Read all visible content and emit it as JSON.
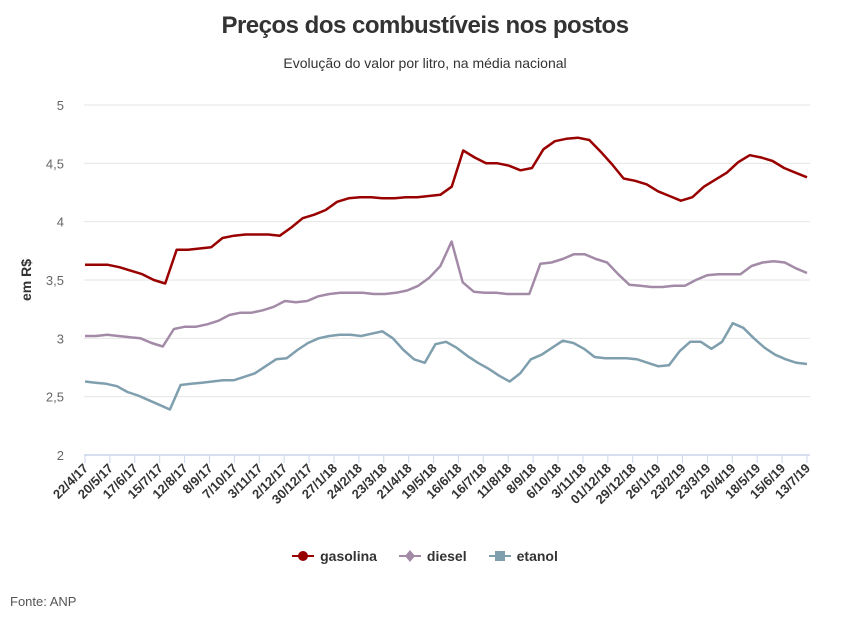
{
  "chart_data": {
    "type": "line",
    "title": "Preços dos combustíveis nos postos",
    "subtitle": "Evolução do valor por litro, na média nacional",
    "ylabel": "em R$",
    "xlabel": "",
    "ylim": [
      2,
      5
    ],
    "yticks": [
      "2",
      "2,5",
      "3",
      "3,5",
      "4",
      "4,5",
      "5"
    ],
    "ytick_values": [
      2,
      2.5,
      3,
      3.5,
      4,
      4.5,
      5
    ],
    "grid": true,
    "legend_position": "bottom",
    "x_tick_labels": [
      "22/4/17",
      "20/5/17",
      "17/6/17",
      "15/7/17",
      "12/8/17",
      "8/9/17",
      "7/10/17",
      "3/11/17",
      "2/12/17",
      "30/12/17",
      "27/1/18",
      "24/2/18",
      "23/3/18",
      "21/4/18",
      "19/5/18",
      "16/6/18",
      "16/7/18",
      "11/8/18",
      "8/9/18",
      "6/10/18",
      "3/11/18",
      "01/12/18",
      "29/12/18",
      "26/1/19",
      "23/2/19",
      "23/3/19",
      "20/4/19",
      "18/5/19",
      "15/6/19",
      "13/7/19"
    ],
    "points_per_tick": 2,
    "series": [
      {
        "name": "gasolina",
        "color": "#990000",
        "marker": "circle",
        "values": [
          3.63,
          3.63,
          3.63,
          3.61,
          3.58,
          3.55,
          3.5,
          3.47,
          3.76,
          3.76,
          3.77,
          3.78,
          3.86,
          3.88,
          3.89,
          3.89,
          3.89,
          3.88,
          3.95,
          4.03,
          4.06,
          4.1,
          4.17,
          4.2,
          4.21,
          4.21,
          4.2,
          4.2,
          4.21,
          4.21,
          4.22,
          4.23,
          4.3,
          4.61,
          4.55,
          4.5,
          4.5,
          4.48,
          4.44,
          4.46,
          4.62,
          4.69,
          4.71,
          4.72,
          4.7,
          4.6,
          4.49,
          4.37,
          4.35,
          4.32,
          4.26,
          4.22,
          4.18,
          4.21,
          4.3,
          4.36,
          4.42,
          4.51,
          4.57,
          4.55,
          4.52,
          4.46,
          4.42,
          4.38
        ]
      },
      {
        "name": "diesel",
        "color": "#a38ba8",
        "marker": "diamond",
        "values": [
          3.02,
          3.02,
          3.03,
          3.02,
          3.01,
          3.0,
          2.96,
          2.93,
          3.08,
          3.1,
          3.1,
          3.12,
          3.15,
          3.2,
          3.22,
          3.22,
          3.24,
          3.27,
          3.32,
          3.31,
          3.32,
          3.36,
          3.38,
          3.39,
          3.39,
          3.39,
          3.38,
          3.38,
          3.39,
          3.41,
          3.45,
          3.52,
          3.62,
          3.83,
          3.48,
          3.4,
          3.39,
          3.39,
          3.38,
          3.38,
          3.38,
          3.64,
          3.65,
          3.68,
          3.72,
          3.72,
          3.68,
          3.65,
          3.55,
          3.46,
          3.45,
          3.44,
          3.44,
          3.45,
          3.45,
          3.5,
          3.54,
          3.55,
          3.55,
          3.55,
          3.62,
          3.65,
          3.66,
          3.65,
          3.6,
          3.56
        ]
      },
      {
        "name": "etanol",
        "color": "#7f9fae",
        "marker": "square",
        "values": [
          2.63,
          2.62,
          2.61,
          2.59,
          2.54,
          2.51,
          2.47,
          2.43,
          2.39,
          2.6,
          2.61,
          2.62,
          2.63,
          2.64,
          2.64,
          2.67,
          2.7,
          2.76,
          2.82,
          2.83,
          2.9,
          2.96,
          3.0,
          3.02,
          3.03,
          3.03,
          3.02,
          3.04,
          3.06,
          3.0,
          2.9,
          2.82,
          2.79,
          2.95,
          2.97,
          2.92,
          2.85,
          2.79,
          2.74,
          2.68,
          2.63,
          2.7,
          2.82,
          2.86,
          2.92,
          2.98,
          2.96,
          2.91,
          2.84,
          2.83,
          2.83,
          2.83,
          2.82,
          2.79,
          2.76,
          2.77,
          2.89,
          2.97,
          2.97,
          2.91,
          2.97,
          3.13,
          3.09,
          3.0,
          2.92,
          2.86,
          2.82,
          2.79,
          2.78
        ]
      }
    ]
  },
  "legend": {
    "items": [
      "gasolina",
      "diesel",
      "etanol"
    ]
  },
  "footer": {
    "source": "Fonte: ANP"
  }
}
